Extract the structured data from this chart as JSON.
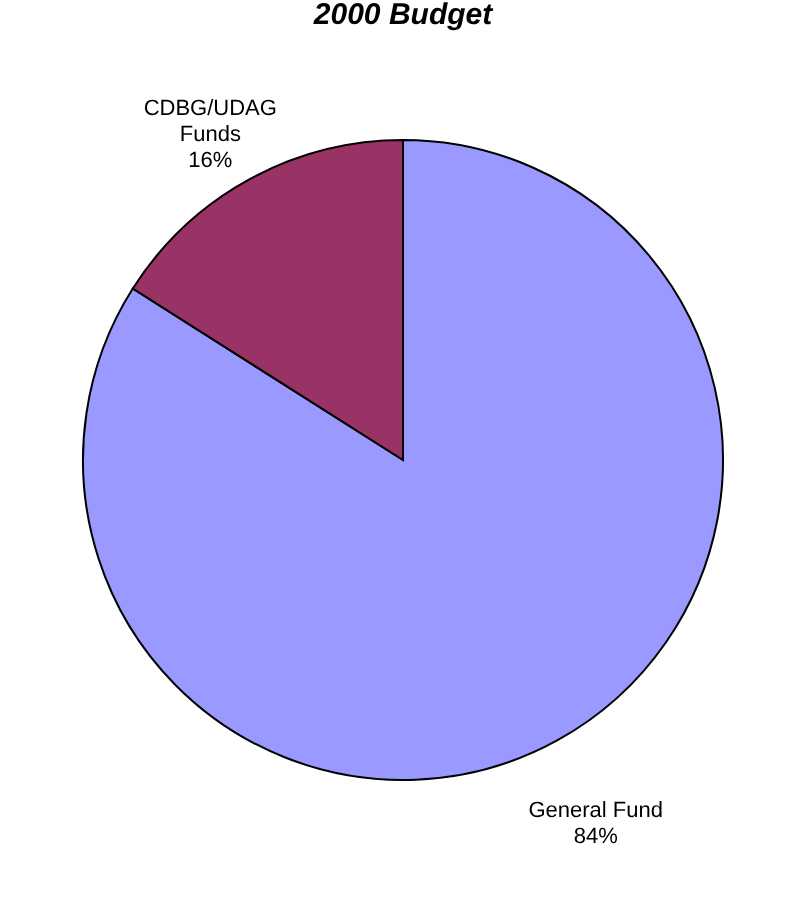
{
  "chart_data": {
    "type": "pie",
    "title": "2000 Budget",
    "categories": [
      "General Fund",
      "CDBG/UDAG Funds"
    ],
    "values": [
      84,
      16
    ],
    "colors": [
      "#9999ff",
      "#993366"
    ],
    "legend": false,
    "value_labels": [
      "84%",
      "16%"
    ]
  }
}
